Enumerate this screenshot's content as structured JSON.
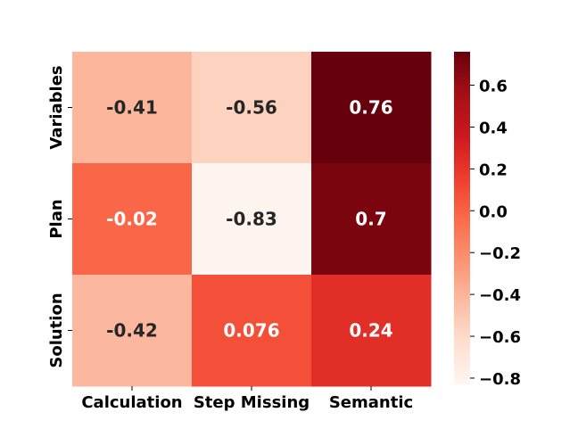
{
  "chart_data": {
    "type": "heatmap",
    "title": "",
    "xlabel": "",
    "ylabel": "",
    "x_categories": [
      "Calculation",
      "Step Missing",
      "Semantic"
    ],
    "y_categories": [
      "Variables",
      "Plan",
      "Solution"
    ],
    "values": [
      [
        -0.41,
        -0.56,
        0.76
      ],
      [
        -0.02,
        -0.83,
        0.7
      ],
      [
        -0.42,
        0.076,
        0.24
      ]
    ],
    "cell_labels": [
      [
        "-0.41",
        "-0.56",
        "0.76"
      ],
      [
        "-0.02",
        "-0.83",
        "0.7"
      ],
      [
        "-0.42",
        "0.076",
        "0.24"
      ]
    ],
    "colormap": "Reds",
    "color_range": [
      -0.83,
      0.76
    ],
    "colorbar": {
      "ticks": [
        0.6,
        0.4,
        0.2,
        0.0,
        -0.2,
        -0.4,
        -0.6,
        -0.8
      ],
      "tick_labels": [
        "0.6",
        "0.4",
        "0.2",
        "0.0",
        "−0.2",
        "−0.4",
        "−0.6",
        "−0.8"
      ]
    },
    "grid": false,
    "legend": "colorbar-right"
  }
}
